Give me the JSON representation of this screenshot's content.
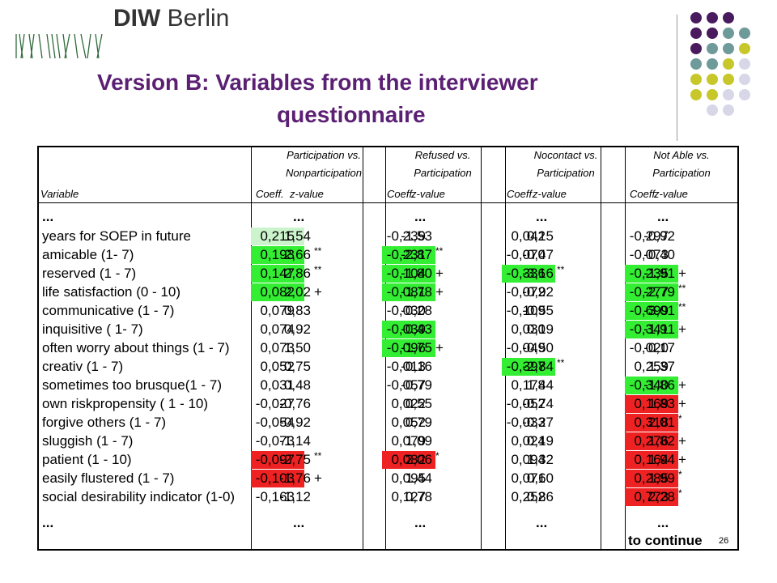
{
  "logo": {
    "brand_bold": "DIW",
    "brand_rest": " Berlin",
    "icon": "diw-wave-logo-icon"
  },
  "title": {
    "line1": "Version B:    Variables from the interviewer",
    "line2": "questionnaire"
  },
  "header": {
    "groups": [
      {
        "line1": "Participation vs.",
        "line2": "Nonparticipation"
      },
      {
        "line1": "Refused vs.",
        "line2": "Participation"
      },
      {
        "line1": "Nocontact vs.",
        "line2": "Participation"
      },
      {
        "line1": "Not Able vs.",
        "line2": "Participation"
      }
    ],
    "variable_label": "Variable",
    "coeff_label": "Coeff.",
    "zvalue_label": "z-value"
  },
  "ellipsis": "...",
  "rows": [
    {
      "name": "years for SOEP in future",
      "c": [
        [
          "0,215",
          "1,54",
          ""
        ],
        [
          "-0,239",
          "-1,53",
          ""
        ],
        [
          "0,042",
          "0,15",
          ""
        ],
        [
          "-0,297",
          "-0,92",
          ""
        ]
      ]
    },
    {
      "name": "amicable (1- 7)",
      "c": [
        [
          "0,193",
          "2,66",
          "**"
        ],
        [
          "-0,231",
          "-2,87",
          "**"
        ],
        [
          "-0,070",
          "-0,47",
          ""
        ],
        [
          "-0,073",
          "-0,40",
          ""
        ]
      ]
    },
    {
      "name": "reserved (1 - 7)",
      "c": [
        [
          "0,147",
          "2,86",
          "**"
        ],
        [
          "-0,104",
          "-1,80",
          "+"
        ],
        [
          "-0,336",
          "-3,16",
          "**"
        ],
        [
          "-0,235",
          "-1,91",
          "+"
        ]
      ]
    },
    {
      "name": "life satisfaction (0 - 10)",
      "c": [
        [
          "0,082",
          "2,02",
          "+"
        ],
        [
          "-0,081",
          "-1,78",
          "+"
        ],
        [
          "-0,072",
          "-0,92",
          ""
        ],
        [
          "-0,277",
          "-2,79",
          "**"
        ]
      ]
    },
    {
      "name": "communicative (1 - 7)",
      "c": [
        [
          "0,079",
          "0,83",
          ""
        ],
        [
          "-0,030",
          "-0,28",
          ""
        ],
        [
          "-0,109",
          "-0,55",
          ""
        ],
        [
          "-0,699",
          "-3,01",
          "**"
        ]
      ]
    },
    {
      "name": "inquisitive ( 1- 7)",
      "c": [
        [
          "0,074",
          "0,92",
          ""
        ],
        [
          "-0,039",
          "-0,43",
          ""
        ],
        [
          "0,030",
          "0,19",
          ""
        ],
        [
          "-0,341",
          "-1,91",
          "+"
        ]
      ]
    },
    {
      "name": "often worry about things (1 - 7)",
      "c": [
        [
          "0,073",
          "1,50",
          ""
        ],
        [
          "-0,096",
          "-1,75",
          "+"
        ],
        [
          "-0,049",
          "-0,50",
          ""
        ],
        [
          "-0,020",
          "-0,17",
          ""
        ]
      ]
    },
    {
      "name": "creativ (1 - 7)",
      "c": [
        [
          "0,052",
          "0,75",
          ""
        ],
        [
          "-0,013",
          "-0,16",
          ""
        ],
        [
          "-0,397",
          "-2,84",
          "**"
        ],
        [
          "0,259",
          "1,37",
          ""
        ]
      ]
    },
    {
      "name": "sometimes too brusque(1 - 7)",
      "c": [
        [
          "0,031",
          "0,48",
          ""
        ],
        [
          "-0,057",
          "-0,79",
          ""
        ],
        [
          "0,178",
          "1,44",
          ""
        ],
        [
          "-0,340",
          "-1,86",
          "+"
        ]
      ]
    },
    {
      "name": "own riskpropensity ( 1 - 10)",
      "c": [
        [
          "-0,027",
          "-0,76",
          ""
        ],
        [
          "0,022",
          "0,55",
          ""
        ],
        [
          "-0,052",
          "-0,74",
          ""
        ],
        [
          "0,169",
          "1,83",
          "+"
        ]
      ]
    },
    {
      "name": "forgive others (1 - 7)",
      "c": [
        [
          "-0,054",
          "-0,92",
          ""
        ],
        [
          "0,052",
          "0,79",
          ""
        ],
        [
          "-0,033",
          "-0,27",
          ""
        ],
        [
          "0,318",
          "2,01",
          "*"
        ]
      ]
    },
    {
      "name": "sluggish (1 - 7)",
      "c": [
        [
          "-0,073",
          "-1,14",
          ""
        ],
        [
          "0,079",
          "1,09",
          ""
        ],
        [
          "0,024",
          "0,19",
          ""
        ],
        [
          "0,276",
          "1,82",
          "+"
        ]
      ]
    },
    {
      "name": "patient (1 - 10)",
      "c": [
        [
          "-0,097",
          "-2,75",
          "**"
        ],
        [
          "0,082",
          "2,06",
          "*"
        ],
        [
          "0,094",
          "1,32",
          ""
        ],
        [
          "0,164",
          "1,94",
          "+"
        ]
      ]
    },
    {
      "name": "easily flustered (1 - 7)",
      "c": [
        [
          "-0,103",
          "-1,76",
          "+"
        ],
        [
          "0,095",
          "1,44",
          ""
        ],
        [
          "0,071",
          "0,60",
          ""
        ],
        [
          "0,285",
          "1,99",
          "*"
        ]
      ]
    },
    {
      "name": "social desirability indicator (1-0)",
      "c": [
        [
          "-0,163",
          "-1,12",
          ""
        ],
        [
          "0,127",
          "0,78",
          ""
        ],
        [
          "0,252",
          "0,86",
          ""
        ],
        [
          "0,773",
          "2,28",
          "*"
        ]
      ]
    }
  ],
  "highlights": [
    {
      "row": 0,
      "g": 0,
      "color": "#ccf4cc"
    },
    {
      "row": 1,
      "g": 0,
      "color": "#33ee33"
    },
    {
      "row": 2,
      "g": 0,
      "color": "#33ee33"
    },
    {
      "row": 3,
      "g": 0,
      "color": "#33ee33"
    },
    {
      "row": 1,
      "g": 1,
      "color": "#33ee33"
    },
    {
      "row": 2,
      "g": 1,
      "color": "#33ee33"
    },
    {
      "row": 3,
      "g": 1,
      "color": "#33ee33"
    },
    {
      "row": 5,
      "g": 1,
      "color": "#33ee33"
    },
    {
      "row": 6,
      "g": 1,
      "color": "#33ee33"
    },
    {
      "row": 2,
      "g": 2,
      "color": "#33ee33"
    },
    {
      "row": 7,
      "g": 2,
      "color": "#33ee33"
    },
    {
      "row": 2,
      "g": 3,
      "color": "#33ee33"
    },
    {
      "row": 3,
      "g": 3,
      "color": "#33ee33"
    },
    {
      "row": 4,
      "g": 3,
      "color": "#33ee33"
    },
    {
      "row": 5,
      "g": 3,
      "color": "#33ee33"
    },
    {
      "row": 8,
      "g": 3,
      "color": "#33ee33"
    },
    {
      "row": 9,
      "g": 3,
      "color": "#ee2222"
    },
    {
      "row": 10,
      "g": 3,
      "color": "#ee2222"
    },
    {
      "row": 11,
      "g": 3,
      "color": "#ee2222"
    },
    {
      "row": 12,
      "g": 3,
      "color": "#ee2222"
    },
    {
      "row": 13,
      "g": 3,
      "color": "#ee2222"
    },
    {
      "row": 14,
      "g": 3,
      "color": "#ee2222"
    },
    {
      "row": 12,
      "g": 0,
      "color": "#ee2222"
    },
    {
      "row": 13,
      "g": 0,
      "color": "#ee2222"
    },
    {
      "row": 12,
      "g": 1,
      "color": "#ee2222"
    }
  ],
  "footer": {
    "continue_label": "to continue",
    "page_number": "26"
  }
}
